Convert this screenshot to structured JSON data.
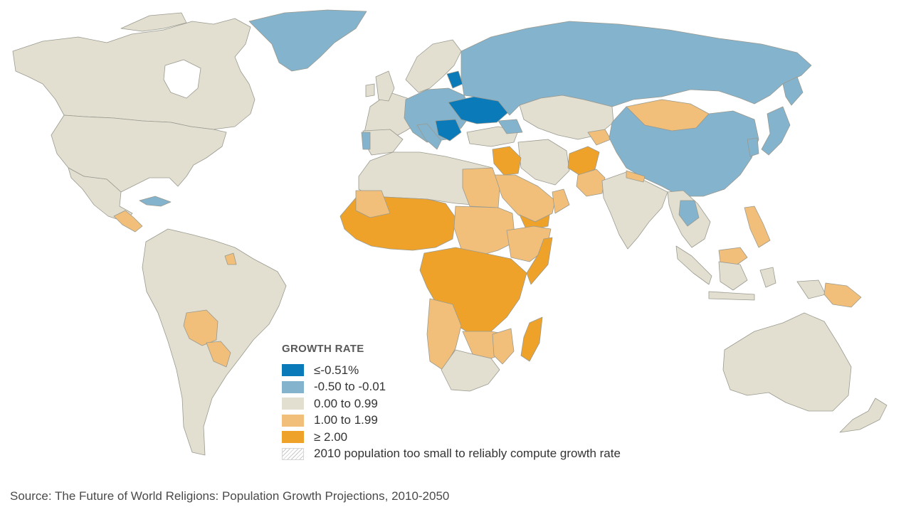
{
  "colors": {
    "bin_le_neg051": "#0a7ab8",
    "bin_neg050_neg001": "#84b3cd",
    "bin_000_099": "#e2dfd0",
    "bin_100_199": "#f1bf79",
    "bin_ge_200": "#eea22a",
    "ocean": "#ffffff",
    "border": "#9a9a90"
  },
  "legend": {
    "title": "GROWTH RATE",
    "items": [
      {
        "label": "≤-0.51%",
        "color": "#0a7ab8"
      },
      {
        "label": "-0.50 to -0.01",
        "color": "#84b3cd"
      },
      {
        "label": "0.00 to 0.99",
        "color": "#e2dfd0"
      },
      {
        "label": "1.00 to 1.99",
        "color": "#f1bf79"
      },
      {
        "label": "≥ 2.00",
        "color": "#eea22a"
      },
      {
        "label": "2010 population too small to reliably compute growth rate",
        "pattern": "hatch"
      }
    ]
  },
  "source": "Source: The Future of World Religions: Population Growth Projections, 2010-2050"
}
